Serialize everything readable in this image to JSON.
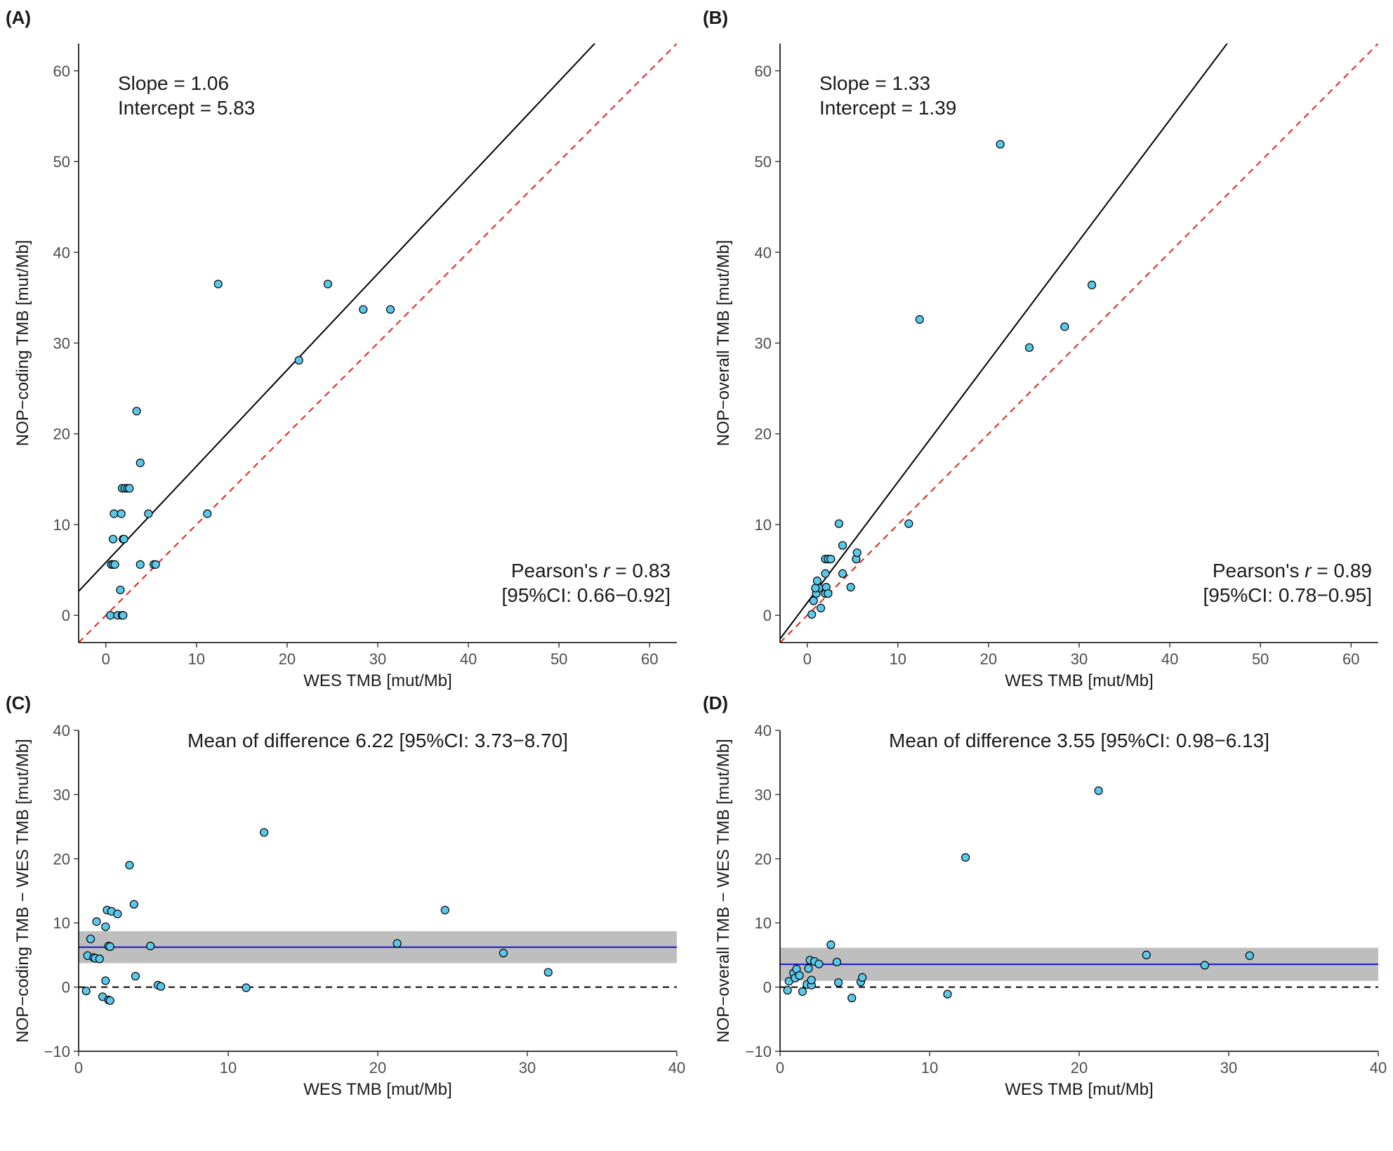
{
  "chart_data": [
    {
      "panel": "(A)",
      "type": "scatter",
      "xlabel": "WES TMB [mut/Mb]",
      "ylabel": "NOP−coding TMB [mut/Mb]",
      "xlim": [
        -3,
        63
      ],
      "ylim": [
        -3,
        63
      ],
      "xticks": [
        0,
        10,
        20,
        30,
        40,
        50,
        60
      ],
      "yticks": [
        0,
        10,
        20,
        30,
        40,
        50,
        60
      ],
      "annotations": [
        "Slope = 1.06",
        "Intercept = 5.83",
        "Pearson's r = 0.83",
        "[95%CI: 0.66−0.92]"
      ],
      "fit_line": {
        "slope": 1.06,
        "intercept": 5.83,
        "color": "#000000"
      },
      "identity_line": {
        "slope": 1,
        "intercept": 0,
        "color": "#e8231c",
        "dash": true
      },
      "point_color": "#5bc8ea",
      "points": [
        [
          0.5,
          0
        ],
        [
          1.3,
          0
        ],
        [
          1.8,
          0
        ],
        [
          1.9,
          0
        ],
        [
          1.6,
          2.8
        ],
        [
          0.6,
          5.6
        ],
        [
          0.8,
          5.6
        ],
        [
          1.0,
          5.6
        ],
        [
          3.8,
          5.6
        ],
        [
          5.3,
          5.6
        ],
        [
          5.5,
          5.6
        ],
        [
          0.8,
          8.4
        ],
        [
          1.9,
          8.4
        ],
        [
          2.0,
          8.4
        ],
        [
          0.9,
          11.2
        ],
        [
          1.7,
          11.2
        ],
        [
          4.7,
          11.2
        ],
        [
          11.2,
          11.2
        ],
        [
          1.8,
          14.0
        ],
        [
          2.1,
          14.0
        ],
        [
          2.4,
          14.0
        ],
        [
          2.6,
          14.0
        ],
        [
          3.8,
          16.8
        ],
        [
          3.4,
          22.5
        ],
        [
          21.3,
          28.1
        ],
        [
          12.4,
          36.5
        ],
        [
          24.5,
          36.5
        ],
        [
          28.4,
          33.7
        ],
        [
          31.4,
          33.7
        ]
      ]
    },
    {
      "panel": "(B)",
      "type": "scatter",
      "xlabel": "WES TMB [mut/Mb]",
      "ylabel": "NOP−overall TMB [mut/Mb]",
      "xlim": [
        -3,
        63
      ],
      "ylim": [
        -3,
        63
      ],
      "xticks": [
        0,
        10,
        20,
        30,
        40,
        50,
        60
      ],
      "yticks": [
        0,
        10,
        20,
        30,
        40,
        50,
        60
      ],
      "annotations": [
        "Slope = 1.33",
        "Intercept = 1.39",
        "Pearson's r = 0.89",
        "[95%CI: 0.78−0.95]"
      ],
      "fit_line": {
        "slope": 1.33,
        "intercept": 1.39,
        "color": "#000000"
      },
      "identity_line": {
        "slope": 1,
        "intercept": 0,
        "color": "#e8231c",
        "dash": true
      },
      "point_color": "#5bc8ea",
      "points": [
        [
          0.5,
          0.1
        ],
        [
          0.7,
          1.6
        ],
        [
          1.5,
          0.8
        ],
        [
          1.0,
          2.4
        ],
        [
          1.3,
          3.0
        ],
        [
          0.9,
          3.0
        ],
        [
          1.1,
          3.8
        ],
        [
          2.0,
          2.4
        ],
        [
          2.1,
          3.1
        ],
        [
          2.3,
          2.4
        ],
        [
          2.0,
          4.6
        ],
        [
          3.9,
          4.6
        ],
        [
          4.8,
          3.1
        ],
        [
          5.4,
          6.2
        ],
        [
          5.5,
          6.9
        ],
        [
          2.0,
          6.2
        ],
        [
          2.3,
          6.2
        ],
        [
          2.6,
          6.2
        ],
        [
          3.9,
          7.7
        ],
        [
          3.5,
          10.1
        ],
        [
          11.2,
          10.1
        ],
        [
          12.4,
          32.6
        ],
        [
          21.3,
          51.9
        ],
        [
          24.5,
          29.5
        ],
        [
          28.4,
          31.8
        ],
        [
          31.4,
          36.4
        ]
      ]
    },
    {
      "panel": "(C)",
      "type": "scatter",
      "xlabel": "WES TMB [mut/Mb]",
      "ylabel": "NOP−coding TMB − WES TMB [mut/Mb]",
      "xlim": [
        0,
        40
      ],
      "ylim": [
        -10,
        40
      ],
      "xticks": [
        0,
        10,
        20,
        30,
        40
      ],
      "yticks": [
        -10,
        0,
        10,
        20,
        30,
        40
      ],
      "annotations": [
        "Mean of difference 6.22 [95%CI: 3.73−8.70]"
      ],
      "mean_line": {
        "value": 6.22,
        "color": "#1414d2"
      },
      "ci_band": {
        "low": 3.73,
        "high": 8.7,
        "color": "#bebebe"
      },
      "zero_line": {
        "value": 0,
        "dash": true
      },
      "point_color": "#5bc8ea",
      "points": [
        [
          0.5,
          -0.6
        ],
        [
          0.6,
          4.9
        ],
        [
          0.8,
          7.5
        ],
        [
          1.0,
          4.6
        ],
        [
          1.2,
          10.2
        ],
        [
          1.1,
          4.5
        ],
        [
          1.4,
          4.4
        ],
        [
          1.6,
          -1.5
        ],
        [
          1.8,
          1.0
        ],
        [
          1.8,
          9.4
        ],
        [
          1.9,
          12.0
        ],
        [
          2.0,
          6.4
        ],
        [
          2.1,
          6.3
        ],
        [
          2.0,
          -2.0
        ],
        [
          2.1,
          -2.1
        ],
        [
          2.2,
          11.8
        ],
        [
          2.6,
          11.4
        ],
        [
          3.4,
          19.0
        ],
        [
          3.7,
          12.9
        ],
        [
          3.8,
          1.7
        ],
        [
          4.8,
          6.4
        ],
        [
          5.3,
          0.3
        ],
        [
          5.5,
          0.1
        ],
        [
          11.2,
          -0.1
        ],
        [
          12.4,
          24.1
        ],
        [
          21.3,
          6.8
        ],
        [
          24.5,
          12.0
        ],
        [
          28.4,
          5.3
        ],
        [
          31.4,
          2.3
        ]
      ]
    },
    {
      "panel": "(D)",
      "type": "scatter",
      "xlabel": "WES TMB [mut/Mb]",
      "ylabel": "NOP−overall TMB − WES TMB [mut/Mb]",
      "xlim": [
        0,
        40
      ],
      "ylim": [
        -10,
        40
      ],
      "xticks": [
        0,
        10,
        20,
        30,
        40
      ],
      "yticks": [
        -10,
        0,
        10,
        20,
        30,
        40
      ],
      "annotations": [
        "Mean of difference 3.55 [95%CI: 0.98−6.13]"
      ],
      "mean_line": {
        "value": 3.55,
        "color": "#1414d2"
      },
      "ci_band": {
        "low": 0.98,
        "high": 6.13,
        "color": "#bebebe"
      },
      "zero_line": {
        "value": 0,
        "dash": true
      },
      "point_color": "#5bc8ea",
      "points": [
        [
          0.5,
          -0.5
        ],
        [
          0.6,
          0.9
        ],
        [
          0.9,
          2.2
        ],
        [
          1.0,
          1.4
        ],
        [
          1.1,
          2.8
        ],
        [
          1.3,
          1.8
        ],
        [
          1.5,
          -0.7
        ],
        [
          1.8,
          0.4
        ],
        [
          1.9,
          2.9
        ],
        [
          2.0,
          4.2
        ],
        [
          2.1,
          0.3
        ],
        [
          2.1,
          1.1
        ],
        [
          2.3,
          4.0
        ],
        [
          2.6,
          3.6
        ],
        [
          3.4,
          6.6
        ],
        [
          3.8,
          3.9
        ],
        [
          3.9,
          0.7
        ],
        [
          4.8,
          -1.7
        ],
        [
          5.4,
          0.8
        ],
        [
          5.5,
          1.5
        ],
        [
          11.2,
          -1.1
        ],
        [
          12.4,
          20.2
        ],
        [
          21.3,
          30.6
        ],
        [
          24.5,
          5.0
        ],
        [
          28.4,
          3.4
        ],
        [
          31.4,
          4.9
        ]
      ]
    }
  ]
}
